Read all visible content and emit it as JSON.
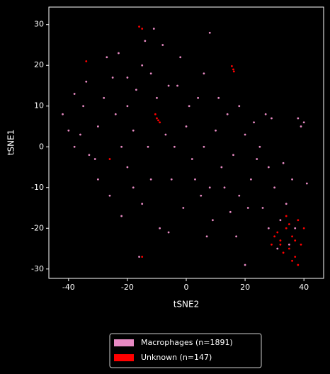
{
  "chart_data": {
    "type": "scatter",
    "xlabel": "tSNE2",
    "ylabel": "tSNE1",
    "xlim": [
      -46.7,
      46.7
    ],
    "ylim": [
      -32.3,
      34.3
    ],
    "xticks": [
      -40,
      -20,
      0,
      20,
      40
    ],
    "yticks": [
      -30,
      -20,
      -10,
      0,
      10,
      20,
      30
    ],
    "grid": false,
    "legend": "bottom",
    "series": [
      {
        "name": "Macrophages (n=1891)",
        "color": "#e78ac3",
        "x": [
          -42,
          -38,
          -35,
          -36,
          -33,
          -30,
          -28,
          -27,
          -25,
          -24,
          -22,
          -20,
          -18,
          -17,
          -15,
          -14,
          -12,
          -10,
          -8,
          -7,
          -5,
          -3,
          -2,
          0,
          2,
          4,
          6,
          8,
          10,
          12,
          14,
          16,
          18,
          20,
          22,
          24,
          26,
          28,
          30,
          32,
          34,
          36,
          38,
          40,
          39,
          27,
          29,
          18,
          -30,
          -26,
          -22,
          -15,
          -12,
          -9,
          -6,
          5,
          7,
          9,
          15,
          20,
          -38,
          -40,
          -34,
          -31,
          -20,
          -18,
          -13,
          -4,
          1,
          3,
          11,
          13,
          21,
          25,
          33,
          35,
          37,
          31,
          -16,
          -11,
          8,
          17,
          -23,
          -20,
          -6,
          -1,
          6,
          23,
          28,
          41
        ],
        "y": [
          8,
          13,
          10,
          3,
          -2,
          5,
          12,
          22,
          17,
          8,
          0,
          -5,
          -10,
          14,
          20,
          26,
          18,
          12,
          25,
          3,
          -8,
          15,
          22,
          5,
          -3,
          12,
          18,
          -10,
          4,
          -5,
          8,
          -2,
          -12,
          3,
          -8,
          -3,
          -15,
          -5,
          -10,
          -18,
          -14,
          -8,
          7,
          6,
          5,
          8,
          7,
          10,
          -8,
          -12,
          -17,
          -14,
          -8,
          -20,
          -21,
          -12,
          -22,
          -18,
          -16,
          -29,
          0,
          4,
          16,
          -3,
          10,
          4,
          0,
          0,
          10,
          -8,
          12,
          -10,
          -15,
          0,
          -4,
          -24,
          -20,
          -25,
          -27,
          29,
          28,
          -22,
          23,
          17,
          15,
          -15,
          0,
          6,
          -20,
          -9
        ]
      },
      {
        "name": "Unknown (n=147)",
        "color": "#ff0000",
        "x": [
          -16,
          -15,
          16,
          15.5,
          16.2,
          -10,
          -9,
          -10.5,
          -9.5,
          30,
          32,
          34,
          36,
          35,
          38,
          37,
          33,
          31,
          39,
          36,
          34,
          38,
          40,
          32,
          35,
          37,
          29,
          -15,
          -26,
          -34
        ],
        "y": [
          29.5,
          29,
          19,
          19.8,
          18.5,
          7,
          6,
          8,
          6.5,
          -22,
          -23,
          -20,
          -22,
          -25,
          -18,
          -27,
          -26,
          -21,
          -24,
          -28,
          -17,
          -29,
          -20,
          -24,
          -19,
          -23,
          -24,
          -27,
          -3,
          21
        ]
      }
    ]
  }
}
